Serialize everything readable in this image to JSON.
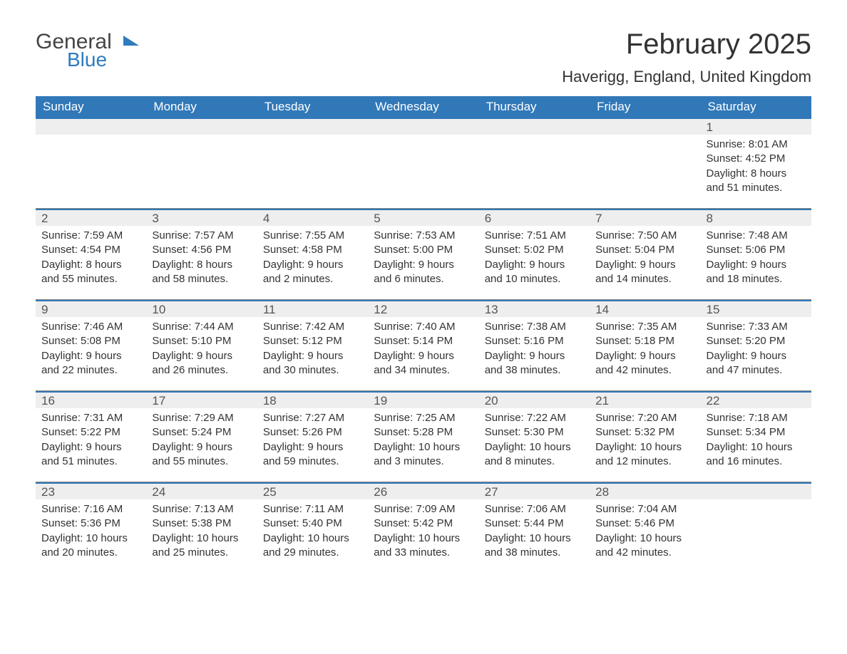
{
  "logo": {
    "text1": "General",
    "text2": "Blue"
  },
  "title": "February 2025",
  "location": "Haverigg, England, United Kingdom",
  "colors": {
    "header_bg": "#3178b8",
    "header_text": "#ffffff",
    "daynum_bg": "#eeeeee",
    "border_blue": "#3178b8",
    "text": "#333333"
  },
  "day_headers": [
    "Sunday",
    "Monday",
    "Tuesday",
    "Wednesday",
    "Thursday",
    "Friday",
    "Saturday"
  ],
  "weeks": [
    [
      null,
      null,
      null,
      null,
      null,
      null,
      {
        "n": "1",
        "sr": "8:01 AM",
        "ss": "4:52 PM",
        "dl": "8 hours and 51 minutes."
      }
    ],
    [
      {
        "n": "2",
        "sr": "7:59 AM",
        "ss": "4:54 PM",
        "dl": "8 hours and 55 minutes."
      },
      {
        "n": "3",
        "sr": "7:57 AM",
        "ss": "4:56 PM",
        "dl": "8 hours and 58 minutes."
      },
      {
        "n": "4",
        "sr": "7:55 AM",
        "ss": "4:58 PM",
        "dl": "9 hours and 2 minutes."
      },
      {
        "n": "5",
        "sr": "7:53 AM",
        "ss": "5:00 PM",
        "dl": "9 hours and 6 minutes."
      },
      {
        "n": "6",
        "sr": "7:51 AM",
        "ss": "5:02 PM",
        "dl": "9 hours and 10 minutes."
      },
      {
        "n": "7",
        "sr": "7:50 AM",
        "ss": "5:04 PM",
        "dl": "9 hours and 14 minutes."
      },
      {
        "n": "8",
        "sr": "7:48 AM",
        "ss": "5:06 PM",
        "dl": "9 hours and 18 minutes."
      }
    ],
    [
      {
        "n": "9",
        "sr": "7:46 AM",
        "ss": "5:08 PM",
        "dl": "9 hours and 22 minutes."
      },
      {
        "n": "10",
        "sr": "7:44 AM",
        "ss": "5:10 PM",
        "dl": "9 hours and 26 minutes."
      },
      {
        "n": "11",
        "sr": "7:42 AM",
        "ss": "5:12 PM",
        "dl": "9 hours and 30 minutes."
      },
      {
        "n": "12",
        "sr": "7:40 AM",
        "ss": "5:14 PM",
        "dl": "9 hours and 34 minutes."
      },
      {
        "n": "13",
        "sr": "7:38 AM",
        "ss": "5:16 PM",
        "dl": "9 hours and 38 minutes."
      },
      {
        "n": "14",
        "sr": "7:35 AM",
        "ss": "5:18 PM",
        "dl": "9 hours and 42 minutes."
      },
      {
        "n": "15",
        "sr": "7:33 AM",
        "ss": "5:20 PM",
        "dl": "9 hours and 47 minutes."
      }
    ],
    [
      {
        "n": "16",
        "sr": "7:31 AM",
        "ss": "5:22 PM",
        "dl": "9 hours and 51 minutes."
      },
      {
        "n": "17",
        "sr": "7:29 AM",
        "ss": "5:24 PM",
        "dl": "9 hours and 55 minutes."
      },
      {
        "n": "18",
        "sr": "7:27 AM",
        "ss": "5:26 PM",
        "dl": "9 hours and 59 minutes."
      },
      {
        "n": "19",
        "sr": "7:25 AM",
        "ss": "5:28 PM",
        "dl": "10 hours and 3 minutes."
      },
      {
        "n": "20",
        "sr": "7:22 AM",
        "ss": "5:30 PM",
        "dl": "10 hours and 8 minutes."
      },
      {
        "n": "21",
        "sr": "7:20 AM",
        "ss": "5:32 PM",
        "dl": "10 hours and 12 minutes."
      },
      {
        "n": "22",
        "sr": "7:18 AM",
        "ss": "5:34 PM",
        "dl": "10 hours and 16 minutes."
      }
    ],
    [
      {
        "n": "23",
        "sr": "7:16 AM",
        "ss": "5:36 PM",
        "dl": "10 hours and 20 minutes."
      },
      {
        "n": "24",
        "sr": "7:13 AM",
        "ss": "5:38 PM",
        "dl": "10 hours and 25 minutes."
      },
      {
        "n": "25",
        "sr": "7:11 AM",
        "ss": "5:40 PM",
        "dl": "10 hours and 29 minutes."
      },
      {
        "n": "26",
        "sr": "7:09 AM",
        "ss": "5:42 PM",
        "dl": "10 hours and 33 minutes."
      },
      {
        "n": "27",
        "sr": "7:06 AM",
        "ss": "5:44 PM",
        "dl": "10 hours and 38 minutes."
      },
      {
        "n": "28",
        "sr": "7:04 AM",
        "ss": "5:46 PM",
        "dl": "10 hours and 42 minutes."
      },
      null
    ]
  ],
  "labels": {
    "sunrise": "Sunrise: ",
    "sunset": "Sunset: ",
    "daylight": "Daylight: "
  }
}
